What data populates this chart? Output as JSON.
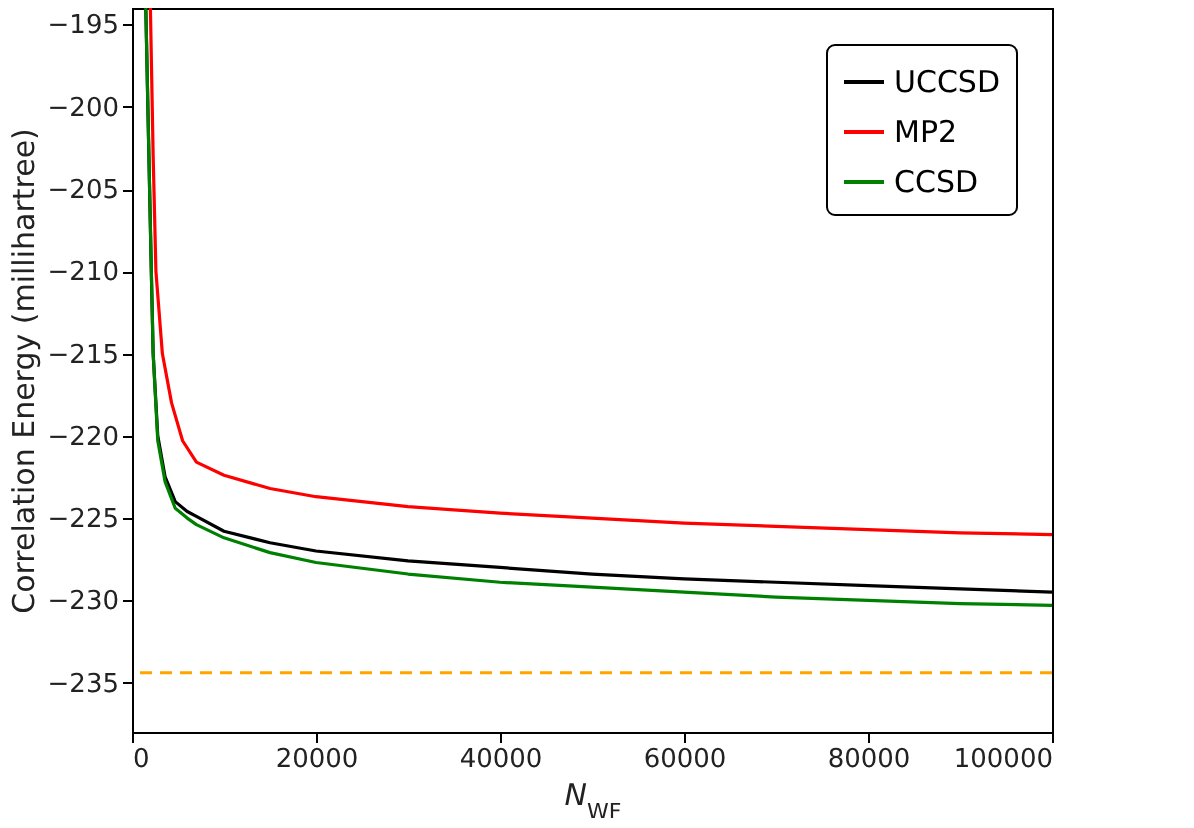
{
  "chart_data": {
    "type": "line",
    "xlabel": "N$_{WF}$",
    "ylabel": "Correlation Energy (millihartree)",
    "xlim": [
      0,
      100000
    ],
    "ylim": [
      -238,
      -194
    ],
    "xticks": [
      0,
      20000,
      40000,
      60000,
      80000,
      100000
    ],
    "yticks": [
      -235,
      -230,
      -225,
      -220,
      -215,
      -210,
      -205,
      -200,
      -195
    ],
    "legend": "top right",
    "grid": false,
    "line_style": "solid",
    "marker": "none",
    "series": [
      {
        "name": "UCCSD",
        "color": "#000000",
        "x": [
          1500,
          1800,
          2100,
          2300,
          2800,
          3600,
          4700,
          6000,
          7000,
          10000,
          15000,
          20000,
          30000,
          40000,
          50000,
          60000,
          70000,
          80000,
          90000,
          100000
        ],
        "values": [
          -194,
          -202,
          -210,
          -215,
          -220,
          -222.5,
          -224,
          -224.6,
          -224.9,
          -225.8,
          -226.5,
          -227.0,
          -227.6,
          -228.0,
          -228.4,
          -228.7,
          -228.9,
          -229.1,
          -229.3,
          -229.5
        ]
      },
      {
        "name": "MP2",
        "color": "#ff0000",
        "x": [
          2000,
          2300,
          2600,
          3300,
          4300,
          5500,
          7000,
          10000,
          15000,
          20000,
          30000,
          40000,
          50000,
          60000,
          70000,
          80000,
          90000,
          100000
        ],
        "values": [
          -194,
          -203,
          -210,
          -215,
          -218,
          -220.3,
          -221.6,
          -222.4,
          -223.2,
          -223.7,
          -224.3,
          -224.7,
          -225.0,
          -225.3,
          -225.5,
          -225.7,
          -225.9,
          -226.0
        ]
      },
      {
        "name": "CCSD",
        "color": "#008000",
        "x": [
          1500,
          1800,
          2100,
          2300,
          2800,
          3600,
          4700,
          6000,
          7000,
          10000,
          15000,
          20000,
          30000,
          40000,
          50000,
          60000,
          70000,
          80000,
          90000,
          100000
        ],
        "values": [
          -194,
          -202,
          -210,
          -215,
          -220.3,
          -222.8,
          -224.4,
          -225.0,
          -225.4,
          -226.2,
          -227.1,
          -227.7,
          -228.4,
          -228.9,
          -229.2,
          -229.5,
          -229.8,
          -230.0,
          -230.2,
          -230.3
        ]
      }
    ],
    "ref_lines": [
      {
        "axis": "y",
        "value": -234.4,
        "color": "#ffa500",
        "line_style": "dashed"
      }
    ]
  }
}
